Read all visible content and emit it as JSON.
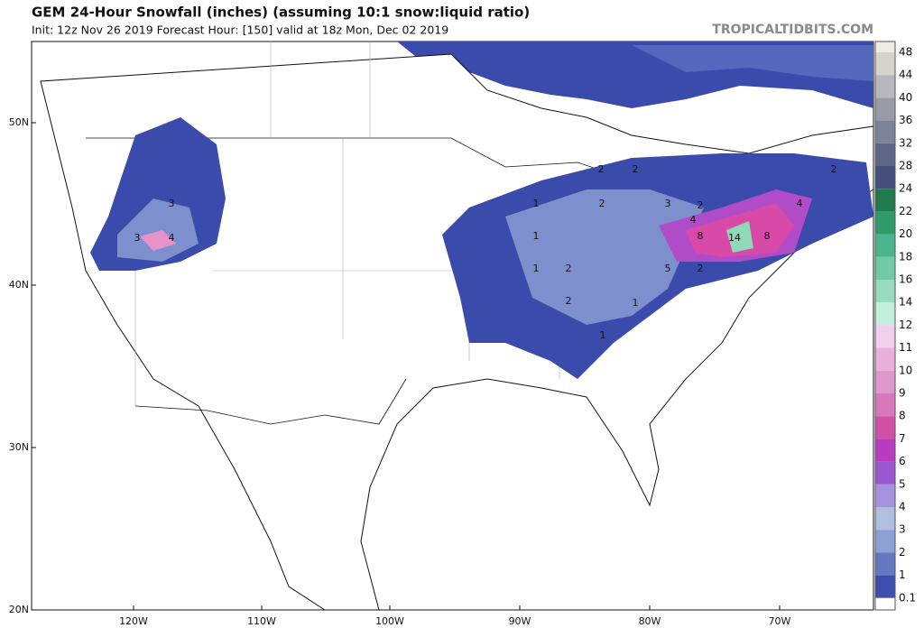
{
  "header": {
    "title": "GEM 24-Hour Snowfall (inches) (assuming 10:1 snow:liquid ratio)",
    "subtitle": "Init: 12z Nov 26 2019   Forecast Hour: [150]   valid at 18z Mon, Dec 02 2019",
    "watermark": "TROPICALTIDBITS.COM"
  },
  "map": {
    "latitude_labels": [
      "50N",
      "40N",
      "30N",
      "20N"
    ],
    "longitude_labels": [
      "120W",
      "110W",
      "100W",
      "90W",
      "80W",
      "70W"
    ],
    "contour_labels": [
      3,
      3,
      4,
      1,
      1,
      2,
      2,
      1,
      2,
      2,
      1,
      3,
      2,
      2,
      4,
      8,
      14,
      8,
      5,
      2,
      4,
      2,
      1
    ]
  },
  "colorbar": {
    "labels": [
      48,
      44,
      40,
      36,
      32,
      28,
      24,
      22,
      20,
      18,
      16,
      14,
      12,
      11,
      10,
      9,
      8,
      7,
      6,
      5,
      4,
      3,
      2,
      1,
      0.1
    ]
  }
}
